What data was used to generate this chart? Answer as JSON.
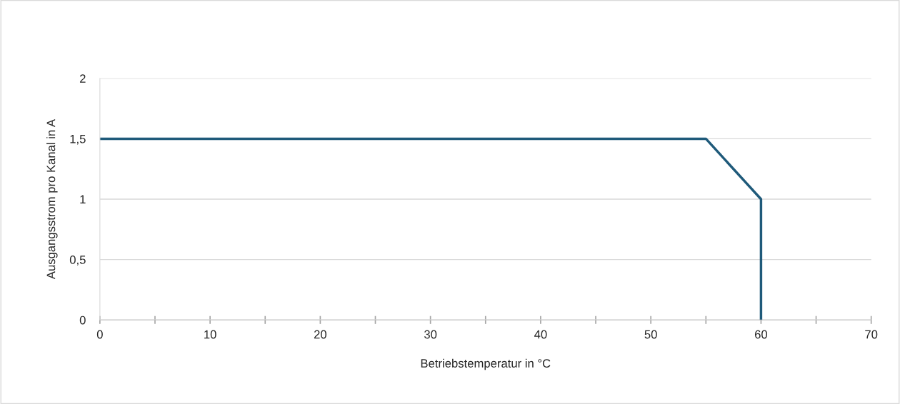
{
  "chart_data": {
    "type": "line",
    "xlabel": "Betriebstemperatur in °C",
    "ylabel": "Ausgangsstrom pro Kanal in A",
    "x": [
      0,
      55,
      60,
      60
    ],
    "series": [
      {
        "color": "#1f5a7a",
        "values": [
          1.5,
          1.5,
          1,
          0
        ]
      }
    ],
    "xlim": [
      0,
      70
    ],
    "xticks": [
      0,
      {
        "value": 5,
        "label": null
      },
      10,
      {
        "value": 15,
        "label": null
      },
      20,
      {
        "value": 25,
        "label": null
      },
      30,
      {
        "value": 35,
        "label": null
      },
      40,
      {
        "value": 45,
        "label": null
      },
      50,
      {
        "value": 55,
        "label": null
      },
      60,
      {
        "value": 65,
        "label": null
      },
      70
    ],
    "ylim": [
      0,
      2
    ],
    "yticks": [
      0,
      {
        "value": 0.5,
        "label": "0,5"
      },
      1,
      {
        "value": 1.5,
        "label": "1,5"
      },
      2
    ],
    "grid": "y",
    "marker": "none",
    "line_style": "solid"
  }
}
